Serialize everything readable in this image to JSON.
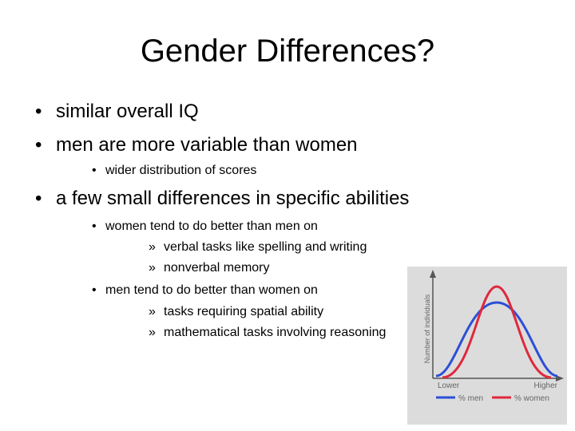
{
  "slide": {
    "title": "Gender Differences?",
    "bullets": [
      {
        "text": "similar overall IQ"
      },
      {
        "text": "men are more variable than women",
        "sub": [
          {
            "text": "wider distribution of scores"
          }
        ]
      },
      {
        "text": "a few small differences in specific abilities",
        "sub": [
          {
            "text": "women tend to do better than men on",
            "sub": [
              {
                "text": "verbal tasks like spelling and writing"
              },
              {
                "text": "nonverbal memory"
              }
            ]
          },
          {
            "text": "men tend to do better than women on",
            "sub": [
              {
                "text": "tasks requiring spatial ability"
              },
              {
                "text": "mathematical tasks involving reasoning"
              }
            ]
          }
        ]
      }
    ],
    "bullet_glyph": "•",
    "subsub_glyph": "»"
  },
  "figure": {
    "ylabel": "Number of individuals",
    "x_low": "Lower",
    "x_high": "Higher",
    "legend": [
      {
        "label": "% men",
        "color": "#2c4fd6"
      },
      {
        "label": "% women",
        "color": "#e0283c"
      }
    ],
    "colors": {
      "background": "#dcdcdc",
      "axis": "#555555",
      "label": "#666666"
    }
  }
}
